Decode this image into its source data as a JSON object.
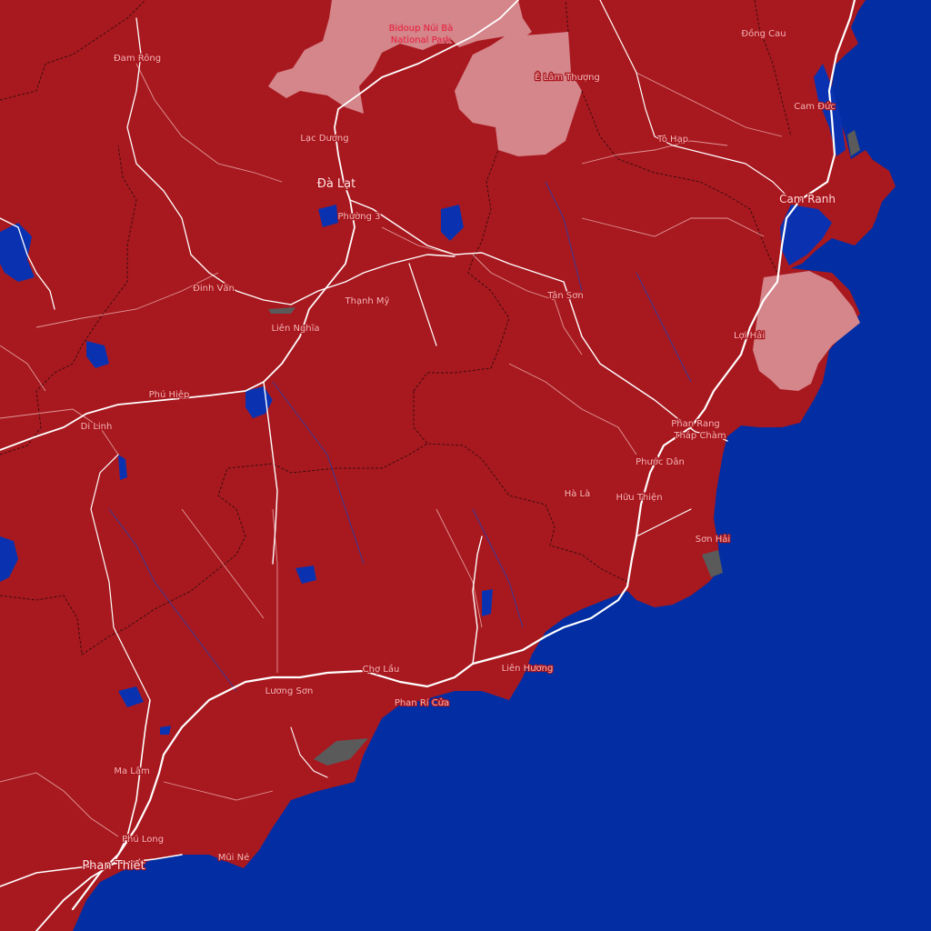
{
  "map": {
    "colors": {
      "sea": "#022da3",
      "land": "#a8191f",
      "park": "#d4868b",
      "road": "#ffffff",
      "label": "#f2b8b8",
      "park_label": "#e8203c"
    },
    "park_label": [
      "Bidoup Núi Bà",
      "National Park"
    ],
    "places": {
      "da_lat": "Đà Lạt",
      "phan_thiet": "Phan Thiết",
      "cam_ranh": "Cam Ranh",
      "phan_rang": "Phan Rang",
      "thap_cham": "Tháp Chàm",
      "dam_rong": "Đam Rông",
      "lac_duong": "Lạc Dương",
      "e_lam_thuong": "Ê Lâm Thượng",
      "dong_cau": "Đồng Cau",
      "cam_duc": "Cam Đức",
      "to_hap": "Tô Hạp",
      "phuong_3": "Phường 3",
      "dinh_van": "Đinh Văn",
      "thanh_my": "Thạnh Mỹ",
      "lien_nghia": "Liên Nghĩa",
      "tan_son": "Tân Sơn",
      "loi_hai": "Lợi Hải",
      "phu_hiep": "Phú Hiệp",
      "di_linh": "Di Linh",
      "phuoc_dan": "Phước Dân",
      "ha_la": "Hà Là",
      "huu_thien": "Hữu Thiện",
      "son_hai": "Sơn Hải",
      "cho_lau": "Chợ Lầu",
      "lien_huong": "Liên Hương",
      "luong_son": "Lương Sơn",
      "phan_ri_cua": "Phan Rí Cửa",
      "ma_lam": "Ma Lâm",
      "phu_long": "Phú Long",
      "mui_ne": "Mũi Né"
    }
  }
}
